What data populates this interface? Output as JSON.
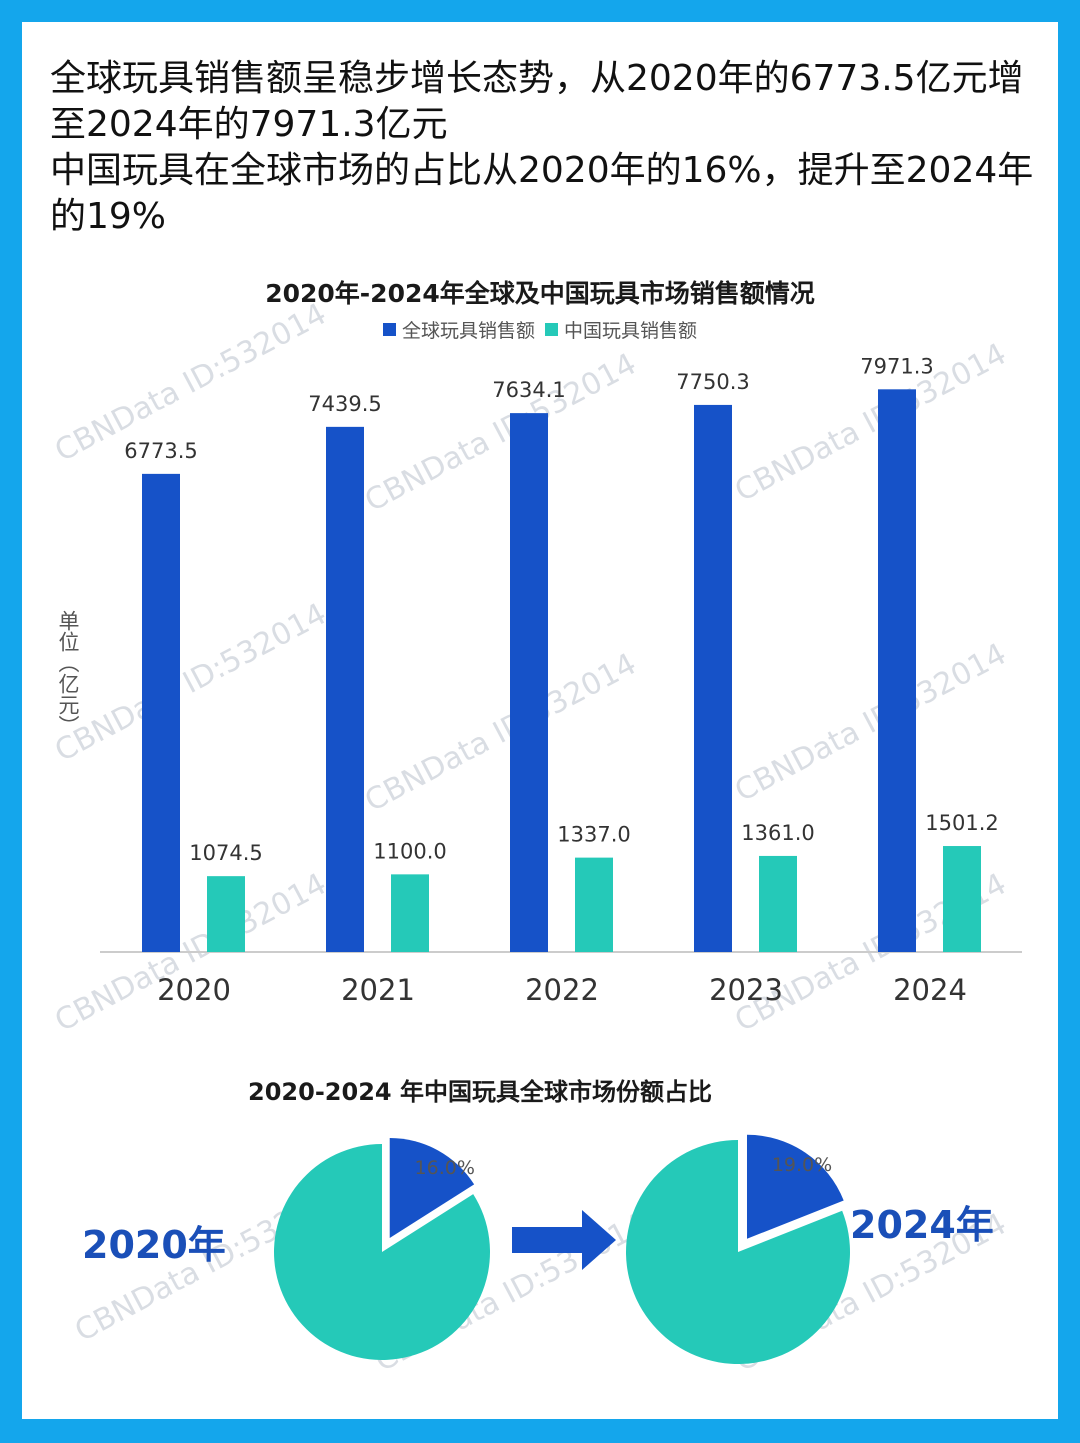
{
  "intro": {
    "line1": "全球玩具销售额呈稳步增长态势，从2020年的6773.5亿元增至2024年的7971.3亿元",
    "line2": "中国玩具在全球市场的占比从2020年的16%，提升至2024年的19%"
  },
  "watermark": "CBNData ID:532014",
  "colors": {
    "global": "#1652c8",
    "china": "#25c9b8",
    "axis": "#cccccc"
  },
  "chart_data": [
    {
      "type": "bar",
      "title": "2020年-2024年全球及中国玩具市场销售额情况",
      "ylabel": "单位（亿元）",
      "categories": [
        "2020",
        "2021",
        "2022",
        "2023",
        "2024"
      ],
      "series": [
        {
          "name": "全球玩具销售额",
          "values": [
            6773.5,
            7439.5,
            7634.1,
            7750.3,
            7971.3
          ],
          "labels": [
            "6773.5",
            "7439.5",
            "7634.1",
            "7750.3",
            "7971.3"
          ]
        },
        {
          "name": "中国玩具销售额",
          "values": [
            1074.5,
            1100.0,
            1337.0,
            1361.0,
            1501.2
          ],
          "labels": [
            "1074.5",
            "1100.0",
            "1337.0",
            "1361.0",
            "1501.2"
          ]
        }
      ],
      "ylim": [
        0,
        8500
      ],
      "grid": false,
      "legend": "top-center"
    },
    {
      "type": "pie",
      "title": "2020-2024 年中国玩具全球市场份额占比",
      "pies": [
        {
          "label": "2020年",
          "share": 16.0,
          "share_label": "16.0%"
        },
        {
          "label": "2024年",
          "share": 19.0,
          "share_label": "19.0%"
        }
      ]
    }
  ]
}
